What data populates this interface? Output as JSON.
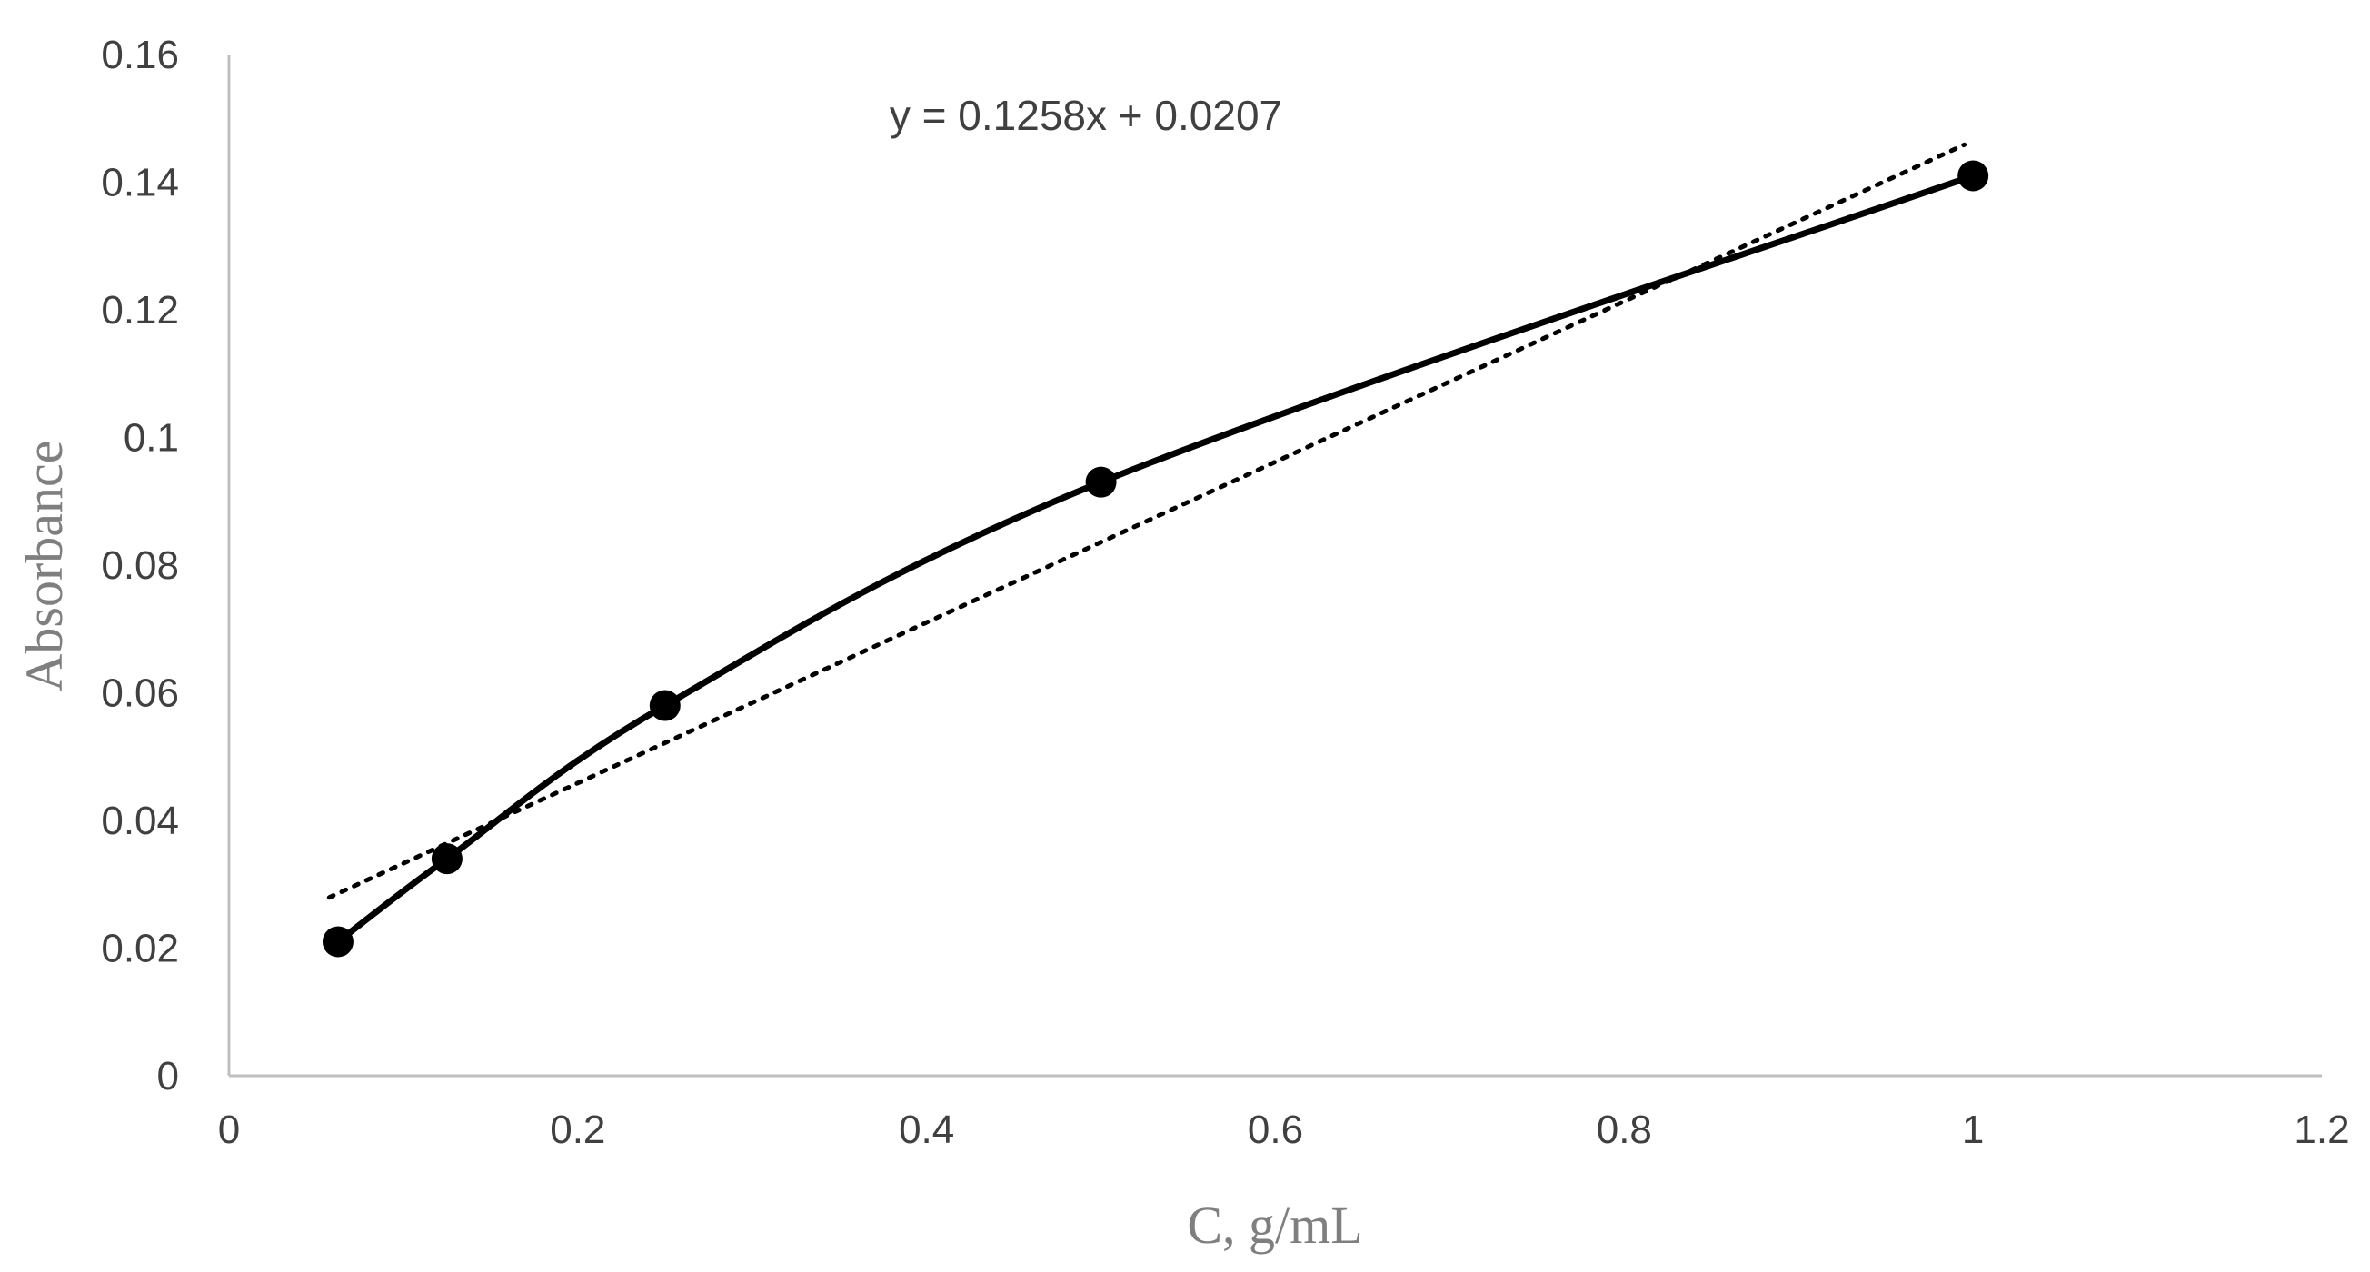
{
  "chart_data": {
    "type": "scatter",
    "xlabel": "C, g/mL",
    "ylabel": "Absorbance",
    "xlim": [
      0,
      1.2
    ],
    "ylim": [
      0,
      0.16
    ],
    "x_ticks": [
      "0",
      "0.2",
      "0.4",
      "0.6",
      "0.8",
      "1",
      "1.2"
    ],
    "y_ticks": [
      "0",
      "0.02",
      "0.04",
      "0.06",
      "0.08",
      "0.1",
      "0.12",
      "0.14",
      "0.16"
    ],
    "x_tick_values": [
      0,
      0.2,
      0.4,
      0.6,
      0.8,
      1.0,
      1.2
    ],
    "y_tick_values": [
      0,
      0.02,
      0.04,
      0.06,
      0.08,
      0.1,
      0.12,
      0.14,
      0.16
    ],
    "grid": false,
    "legend": "none",
    "series": [
      {
        "x": [
          0.0625,
          0.125,
          0.25,
          0.5,
          1.0
        ],
        "y": [
          0.021,
          0.034,
          0.058,
          0.093,
          0.141
        ],
        "line": "solid smoothed",
        "marker": "filled circle",
        "color": "#000000"
      }
    ],
    "trendline": {
      "type": "linear",
      "slope": 0.1258,
      "intercept": 0.0207,
      "x_range": [
        0.0625,
        1.0
      ],
      "style": "dotted",
      "color": "#000000"
    },
    "annotations": [
      "y = 0.1258x + 0.0207"
    ]
  }
}
